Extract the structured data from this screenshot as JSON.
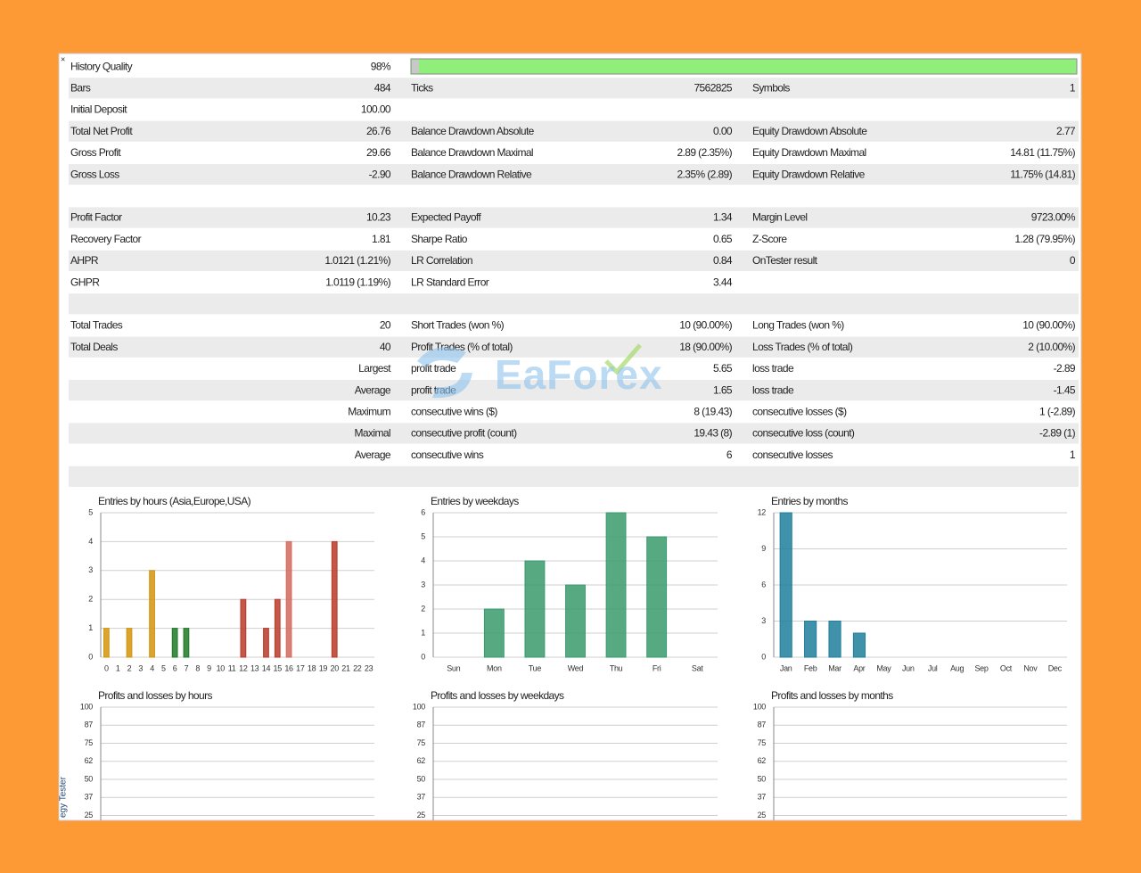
{
  "table": {
    "rows": [
      [
        "History Quality",
        "98%"
      ],
      [
        "Bars",
        "484",
        "Ticks",
        "7562825",
        "Symbols",
        "1"
      ],
      [
        "Initial Deposit",
        "100.00"
      ],
      [
        "Total Net Profit",
        "26.76",
        "Balance Drawdown Absolute",
        "0.00",
        "Equity Drawdown Absolute",
        "2.77"
      ],
      [
        "Gross Profit",
        "29.66",
        "Balance Drawdown Maximal",
        "2.89 (2.35%)",
        "Equity Drawdown Maximal",
        "14.81 (11.75%)"
      ],
      [
        "Gross Loss",
        "-2.90",
        "Balance Drawdown Relative",
        "2.35% (2.89)",
        "Equity Drawdown Relative",
        "11.75% (14.81)"
      ],
      [],
      [
        "Profit Factor",
        "10.23",
        "Expected Payoff",
        "1.34",
        "Margin Level",
        "9723.00%"
      ],
      [
        "Recovery Factor",
        "1.81",
        "Sharpe Ratio",
        "0.65",
        "Z-Score",
        "1.28 (79.95%)"
      ],
      [
        "AHPR",
        "1.0121 (1.21%)",
        "LR Correlation",
        "0.84",
        "OnTester result",
        "0"
      ],
      [
        "GHPR",
        "1.0119 (1.19%)",
        "LR Standard Error",
        "3.44"
      ],
      [],
      [
        "Total Trades",
        "20",
        "Short Trades (won %)",
        "10 (90.00%)",
        "Long Trades (won %)",
        "10 (90.00%)"
      ],
      [
        "Total Deals",
        "40",
        "Profit Trades (% of total)",
        "18 (90.00%)",
        "Loss Trades (% of total)",
        "2 (10.00%)"
      ],
      [
        null,
        "Largest",
        "profit trade",
        "5.65",
        "loss trade",
        "-2.89"
      ],
      [
        null,
        "Average",
        "profit trade",
        "1.65",
        "loss trade",
        "-1.45"
      ],
      [
        null,
        "Maximum",
        "consecutive wins ($)",
        "8 (19.43)",
        "consecutive losses ($)",
        "1 (-2.89)"
      ],
      [
        null,
        "Maximal",
        "consecutive profit (count)",
        "19.43 (8)",
        "consecutive loss (count)",
        "-2.89 (1)"
      ],
      [
        null,
        "Average",
        "consecutive wins",
        "6",
        "consecutive losses",
        "1"
      ],
      []
    ]
  },
  "watermark": "EaForex",
  "side_tab": "egy Tester",
  "charts": [
    {
      "type": "bar",
      "title": "Entries by hours (Asia,Europe,USA)",
      "categories": [
        "0",
        "1",
        "2",
        "3",
        "4",
        "5",
        "6",
        "7",
        "8",
        "9",
        "10",
        "11",
        "12",
        "13",
        "14",
        "15",
        "16",
        "17",
        "18",
        "19",
        "20",
        "21",
        "22",
        "23"
      ],
      "values": [
        1,
        0,
        1,
        0,
        3,
        0,
        1,
        1,
        0,
        0,
        0,
        0,
        2,
        0,
        1,
        2,
        4,
        0,
        0,
        0,
        4,
        0,
        0,
        0
      ],
      "colors": [
        "#d4940c",
        "#d4940c",
        "#d4940c",
        "#d4940c",
        "#d4940c",
        "#d4940c",
        "#1f7a24",
        "#1f7a24",
        "#1f7a24",
        "#1f7a24",
        "#1f7a24",
        "#1f7a24",
        "#b8392a",
        "#b8392a",
        "#b8392a",
        "#b8392a",
        "#d4685a",
        "#b8392a",
        "#b8392a",
        "#b8392a",
        "#b8392a",
        "#b8392a",
        "#b8392a",
        "#b8392a"
      ],
      "ylim": [
        0,
        5
      ],
      "yticks": [
        0,
        1,
        2,
        3,
        4,
        5
      ],
      "grid": true
    },
    {
      "type": "bar",
      "title": "Entries by weekdays",
      "categories": [
        "Sun",
        "Mon",
        "Tue",
        "Wed",
        "Thu",
        "Fri",
        "Sat"
      ],
      "values": [
        0,
        2,
        4,
        3,
        6,
        5,
        0
      ],
      "color": "#3a9a6c",
      "ylim": [
        0,
        6
      ],
      "yticks": [
        0,
        1,
        2,
        3,
        4,
        5,
        6
      ],
      "grid": true
    },
    {
      "type": "bar",
      "title": "Entries by months",
      "categories": [
        "Jan",
        "Feb",
        "Mar",
        "Apr",
        "May",
        "Jun",
        "Jul",
        "Aug",
        "Sep",
        "Oct",
        "Nov",
        "Dec"
      ],
      "values": [
        12,
        3,
        3,
        2,
        0,
        0,
        0,
        0,
        0,
        0,
        0,
        0
      ],
      "color": "#1f7f9c",
      "ylim": [
        0,
        12
      ],
      "yticks": [
        0,
        3,
        6,
        9,
        12
      ],
      "grid": true
    },
    {
      "type": "bar",
      "title": "Profits and losses by hours",
      "ylim": [
        0,
        100
      ],
      "yticks": [
        100,
        {
          "value": 87.5,
          "label": "87"
        },
        75,
        {
          "value": 62.5,
          "label": "62"
        },
        50,
        {
          "value": 37.5,
          "label": "37"
        },
        25
      ],
      "grid": true
    },
    {
      "type": "bar",
      "title": "Profits and losses by weekdays",
      "ylim": [
        0,
        100
      ],
      "yticks": [
        100,
        {
          "value": 87.5,
          "label": "87"
        },
        75,
        {
          "value": 62.5,
          "label": "62"
        },
        50,
        {
          "value": 37.5,
          "label": "37"
        },
        25
      ],
      "grid": true
    },
    {
      "type": "bar",
      "title": "Profits and losses by months",
      "ylim": [
        0,
        100
      ],
      "yticks": [
        100,
        {
          "value": 87.5,
          "label": "87"
        },
        75,
        {
          "value": 62.5,
          "label": "62"
        },
        50,
        {
          "value": 37.5,
          "label": "37"
        },
        25
      ],
      "grid": true
    }
  ]
}
